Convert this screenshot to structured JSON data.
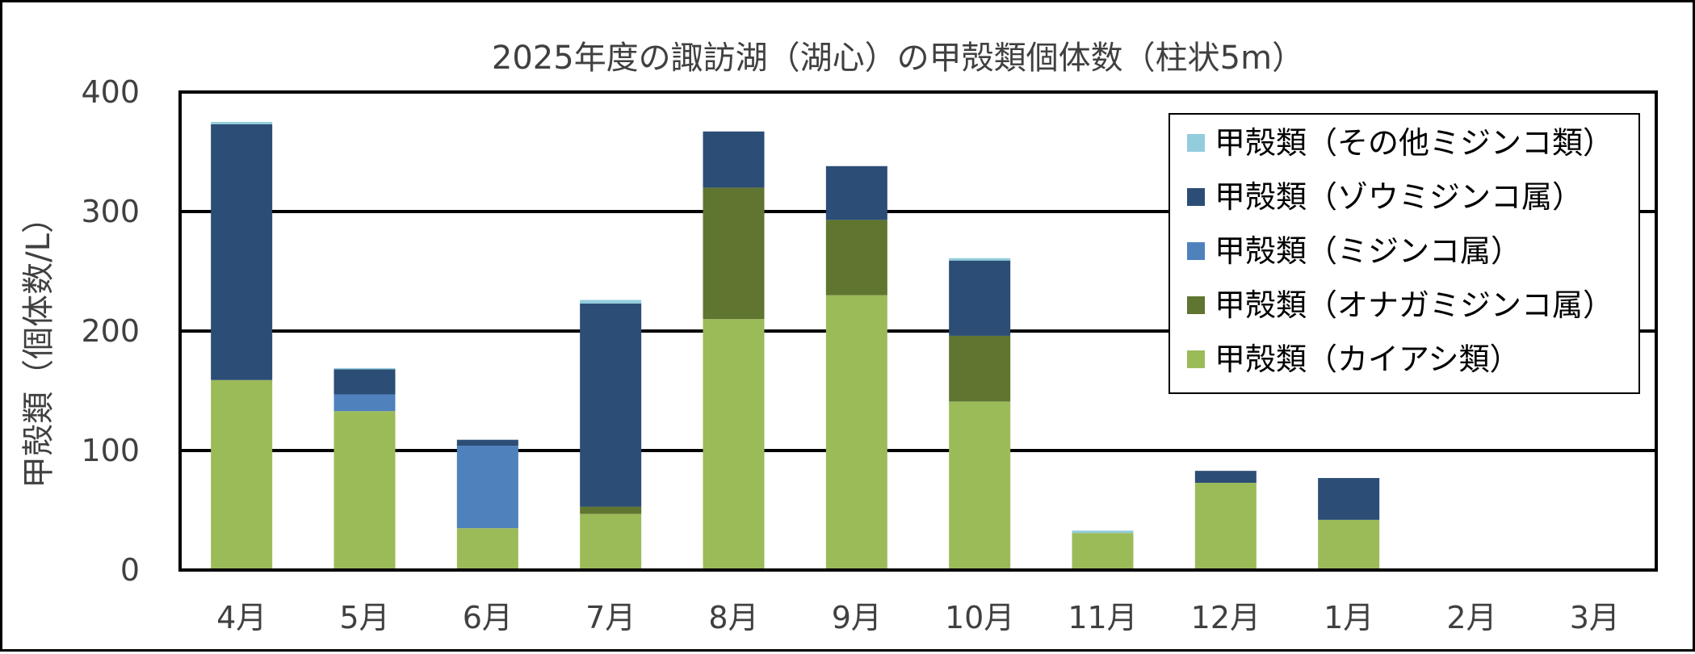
{
  "chart_data": {
    "type": "bar",
    "stacked": true,
    "title": "2025年度の諏訪湖（湖心）の甲殻類個体数（柱状5m）",
    "xlabel": "",
    "ylabel": "甲殻類（個体数/L）",
    "ylim": [
      0,
      400
    ],
    "yticks": [
      0,
      100,
      200,
      300,
      400
    ],
    "grid": true,
    "legend_position": "top-right",
    "categories": [
      "4月",
      "5月",
      "6月",
      "7月",
      "8月",
      "9月",
      "10月",
      "11月",
      "12月",
      "1月",
      "2月",
      "3月"
    ],
    "series": [
      {
        "name": "甲殻類（カイアシ類）",
        "color": "#9BBB59",
        "values": [
          159,
          133,
          35,
          47,
          210,
          230,
          141,
          31,
          73,
          42,
          0,
          0
        ]
      },
      {
        "name": "甲殻類（オナガミジンコ属）",
        "color": "#5F7530",
        "values": [
          0,
          0,
          0,
          6,
          110,
          63,
          55,
          0,
          0,
          0,
          0,
          0
        ]
      },
      {
        "name": "甲殻類（ミジンコ属）",
        "color": "#4F81BD",
        "values": [
          0,
          14,
          69,
          0,
          0,
          0,
          0,
          0,
          0,
          0,
          0,
          0
        ]
      },
      {
        "name": "甲殻類（ゾウミジンコ属）",
        "color": "#2C4D75",
        "values": [
          214,
          21,
          5,
          170,
          47,
          45,
          63,
          0,
          10,
          35,
          0,
          0
        ]
      },
      {
        "name": "甲殻類（その他ミジンコ類）",
        "color": "#93CDDD",
        "values": [
          2,
          1,
          0,
          3,
          0,
          0,
          2,
          2,
          0,
          0,
          0,
          0
        ]
      }
    ]
  }
}
